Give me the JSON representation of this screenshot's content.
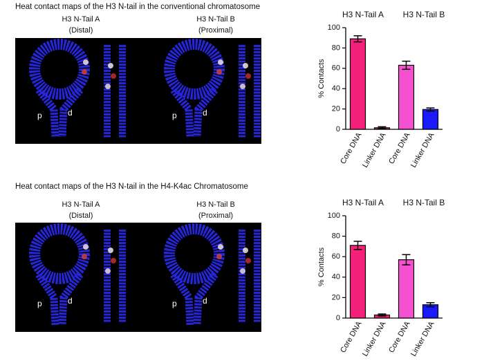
{
  "panels": [
    {
      "title": "Heat contact maps of the H3 N-tail in the conventional chromatosome",
      "views": [
        {
          "name": "H3 N-Tail A",
          "position": "(Distal)",
          "markers": [
            "p",
            "d"
          ]
        },
        {
          "name": "H3 N-Tail B",
          "position": "(Proximal)",
          "markers": [
            "p",
            "d"
          ]
        }
      ]
    },
    {
      "title": "Heat contact maps of the H3 N-tail in the H4-K4ac Chromatosome",
      "views": [
        {
          "name": "H3 N-Tail A",
          "position": "(Distal)",
          "markers": [
            "p",
            "d"
          ]
        },
        {
          "name": "H3 N-Tail B",
          "position": "(Proximal)",
          "markers": [
            "p",
            "d"
          ]
        }
      ]
    }
  ],
  "chart_data": [
    {
      "type": "bar",
      "y_label": "% Contacts",
      "group_labels": [
        "H3 N-Tail A",
        "H3 N-Tail B"
      ],
      "categories": [
        "Core DNA",
        "Linker DNA",
        "Core DNA",
        "Linker DNA"
      ],
      "values": [
        89,
        1.5,
        63,
        19.5
      ],
      "errors": [
        3,
        1,
        4,
        1.5
      ],
      "colors": [
        "#f5207a",
        "#f5207a",
        "#f550d0",
        "#1a1aff"
      ],
      "ylim": [
        0,
        100
      ],
      "yticks": [
        0,
        20,
        40,
        60,
        80,
        100
      ]
    },
    {
      "type": "bar",
      "y_label": "% Contacts",
      "group_labels": [
        "H3 N-Tail A",
        "H3 N-Tail B"
      ],
      "categories": [
        "Core DNA",
        "Linker DNA",
        "Core DNA",
        "Linker DNA"
      ],
      "values": [
        71,
        3,
        57,
        13
      ],
      "errors": [
        4,
        1,
        5,
        2
      ],
      "colors": [
        "#f5207a",
        "#f5207a",
        "#f550d0",
        "#1a1aff"
      ],
      "ylim": [
        0,
        100
      ],
      "yticks": [
        0,
        20,
        40,
        60,
        80,
        100
      ]
    }
  ]
}
